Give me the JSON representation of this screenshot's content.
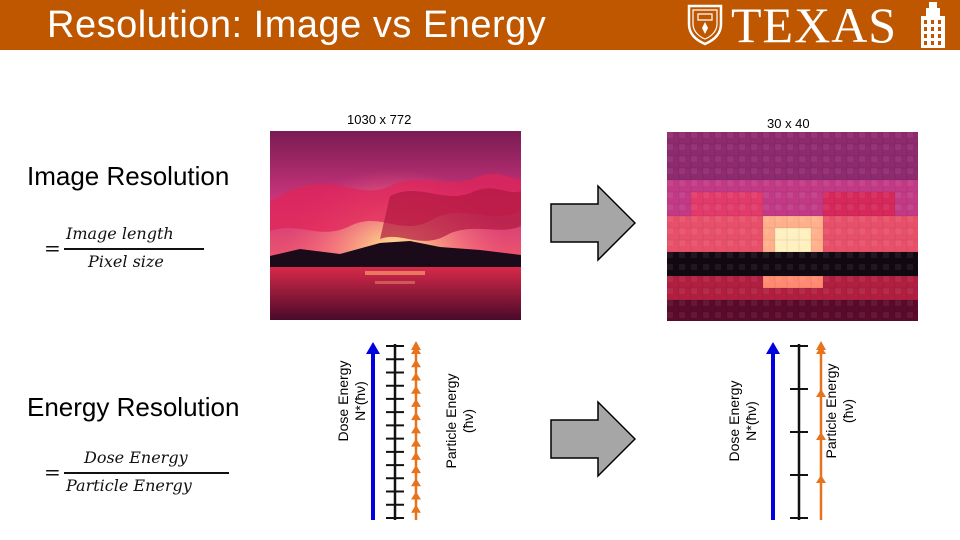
{
  "header": {
    "title": "Resolution: Image vs Energy",
    "brand": "TEXAS",
    "background_color": "#bf5700"
  },
  "icons": [
    "university-seal-icon",
    "tower-icon",
    "right-arrow-icon"
  ],
  "image_section": {
    "heading": "Image Resolution",
    "formula": {
      "eq": "=",
      "numerator": "Image length",
      "denominator": "Pixel size"
    },
    "original_label": "1030 x 772",
    "pixelated_label": "30 x 40"
  },
  "energy_section": {
    "heading": "Energy Resolution",
    "formula": {
      "eq": "=",
      "numerator": "Dose Energy",
      "denominator": "Particle Energy"
    },
    "left_panel": {
      "dose_label": [
        "Dose Energy",
        "N*(ħν)"
      ],
      "particle_label": [
        "Particle Energy",
        "(ħν)"
      ],
      "particle_ticks": 14
    },
    "right_panel": {
      "dose_label": [
        "Dose Energy",
        "N*(ħν)"
      ],
      "particle_label": [
        "Particle Energy",
        "(ħν)"
      ],
      "particle_ticks": 5
    }
  },
  "colors": {
    "dose_arrow": "#0000e0",
    "particle_arrow": "#e8731e",
    "scale_bar": "#111111",
    "flow_arrow": "#a6a6a6"
  }
}
